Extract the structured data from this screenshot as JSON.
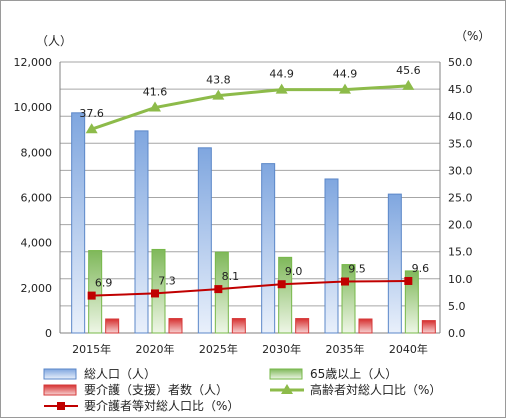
{
  "chart_data": {
    "type": "bar",
    "title": "",
    "categories": [
      "2015年",
      "2020年",
      "2025年",
      "2030年",
      "2035年",
      "2040年"
    ],
    "y_left": {
      "unit_label": "（人）",
      "ylim": [
        0,
        12000
      ],
      "ticks": [
        "0",
        "2,000",
        "4,000",
        "6,000",
        "8,000",
        "10,000",
        "12,000"
      ]
    },
    "y_right": {
      "unit_label": "（%）",
      "ylim": [
        0,
        50
      ],
      "ticks": [
        "0.0",
        "5.0",
        "10.0",
        "15.0",
        "20.0",
        "25.0",
        "30.0",
        "35.0",
        "40.0",
        "45.0",
        "50.0"
      ]
    },
    "grid": true,
    "legend_position": "bottom",
    "series": [
      {
        "name": "総人口（人）",
        "type": "bar",
        "axis": "left",
        "color": "#5b87c8",
        "values": [
          9750,
          8950,
          8200,
          7500,
          6820,
          6150
        ]
      },
      {
        "name": "65歳以上（人）",
        "type": "bar",
        "axis": "left",
        "color": "#77b84a",
        "values": [
          3650,
          3700,
          3580,
          3350,
          3030,
          2750
        ]
      },
      {
        "name": "要介護（支援）者数（人）",
        "type": "bar",
        "axis": "left",
        "color": "#d63a3a",
        "values": [
          620,
          640,
          640,
          640,
          620,
          550
        ]
      },
      {
        "name": "高齢者対総人口比（%）",
        "type": "line",
        "axis": "right",
        "color": "#8dbb4a",
        "marker": "triangle",
        "values": [
          37.6,
          41.6,
          43.8,
          44.9,
          44.9,
          45.6
        ],
        "labels": [
          "37.6",
          "41.6",
          "43.8",
          "44.9",
          "44.9",
          "45.6"
        ]
      },
      {
        "name": "要介護者等対総人口比（%）",
        "type": "line",
        "axis": "right",
        "color": "#c00000",
        "marker": "square",
        "values": [
          6.9,
          7.3,
          8.1,
          9.0,
          9.5,
          9.6
        ],
        "labels": [
          "6.9",
          "7.3",
          "8.1",
          "9.0",
          "9.5",
          "9.6"
        ]
      }
    ]
  }
}
